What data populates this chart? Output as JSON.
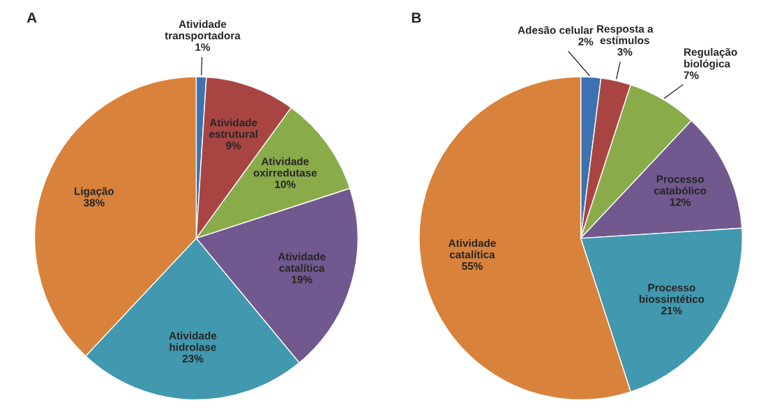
{
  "chart_data": [
    {
      "type": "pie",
      "title": "A",
      "categories": [
        "Atividade\ntransportadora",
        "Atividade\nestrutural",
        "Atividade\noxirredutase",
        "Atividade\ncatalítica",
        "Atividade\nhidrolase",
        "Ligação"
      ],
      "values": [
        1,
        9,
        10,
        19,
        23,
        38
      ],
      "colors": [
        "#3d72b0",
        "#a84542",
        "#8aab4a",
        "#71588f",
        "#4198af",
        "#d9823b"
      ],
      "value_labels": [
        "1%",
        "9%",
        "10%",
        "19%",
        "23%",
        "38%"
      ]
    },
    {
      "type": "pie",
      "title": "B",
      "categories": [
        "Adesão celular",
        "Resposta a\nestímulos",
        "Regulação\nbiológica",
        "Processo\ncatabólico",
        "Processo\nbiossintético",
        "Atividade\ncatalítica"
      ],
      "values": [
        2,
        3,
        7,
        12,
        21,
        55
      ],
      "colors": [
        "#3d72b0",
        "#a84542",
        "#8aab4a",
        "#71588f",
        "#4198af",
        "#d9823b"
      ],
      "value_labels": [
        "2%",
        "3%",
        "7%",
        "12%",
        "21%",
        "55%"
      ]
    }
  ]
}
